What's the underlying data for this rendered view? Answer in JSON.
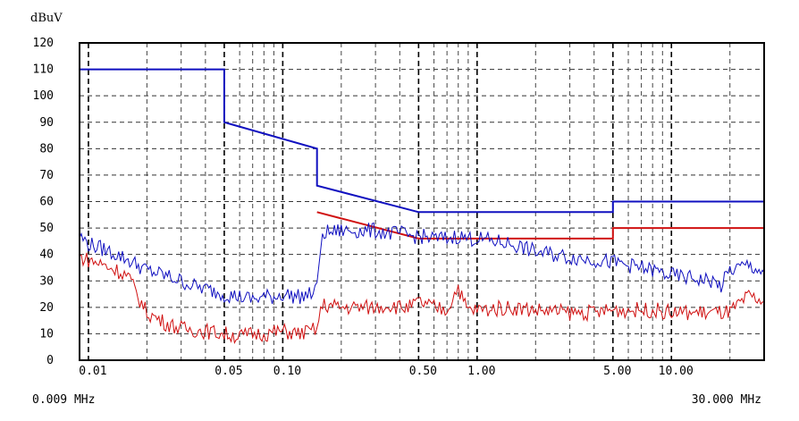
{
  "chart_data": {
    "type": "line",
    "y_unit": "dBuV",
    "x_scale": "log",
    "x_range_mhz": [
      0.009,
      30.0
    ],
    "ylim": [
      0,
      120
    ],
    "y_ticks": [
      0,
      10,
      20,
      30,
      40,
      50,
      60,
      70,
      80,
      90,
      100,
      110,
      120
    ],
    "x_ticks": [
      {
        "value": 0.01,
        "label": "0.01"
      },
      {
        "value": 0.05,
        "label": "0.05"
      },
      {
        "value": 0.1,
        "label": "0.10"
      },
      {
        "value": 0.5,
        "label": "0.50"
      },
      {
        "value": 1.0,
        "label": "1.00"
      },
      {
        "value": 5.0,
        "label": "5.00"
      },
      {
        "value": 10.0,
        "label": "10.00"
      }
    ],
    "range_start_label": "0.009 MHz",
    "range_end_label": "30.000 MHz",
    "grid": true,
    "series": [
      {
        "color": "#1010c0",
        "kind": "limit",
        "x": [
          0.009,
          0.05,
          0.05,
          0.15,
          0.15,
          0.5,
          5.0,
          5.0,
          30.0
        ],
        "y": [
          110,
          110,
          90,
          80,
          66,
          56,
          56,
          60,
          60
        ]
      },
      {
        "color": "#d01010",
        "kind": "limit",
        "x": [
          0.15,
          0.5,
          5.0,
          5.0,
          30.0
        ],
        "y": [
          56,
          46,
          46,
          50,
          50
        ]
      },
      {
        "color": "#1010c0",
        "kind": "measurement",
        "x": [
          0.009,
          0.01,
          0.012,
          0.014,
          0.016,
          0.02,
          0.025,
          0.03,
          0.035,
          0.04,
          0.05,
          0.06,
          0.07,
          0.08,
          0.09,
          0.1,
          0.12,
          0.14,
          0.15,
          0.16,
          0.2,
          0.25,
          0.3,
          0.35,
          0.4,
          0.45,
          0.5,
          0.6,
          0.7,
          0.8,
          0.9,
          1.0,
          1.5,
          2.0,
          3.0,
          4.0,
          5.0,
          6.0,
          8.0,
          10.0,
          13.0,
          16.0,
          18.0,
          20.0,
          25.0,
          30.0
        ],
        "y": [
          47,
          44,
          42,
          40,
          38,
          34,
          32,
          30,
          28,
          27,
          25,
          24,
          23,
          24,
          24,
          25,
          24,
          25,
          27,
          48,
          49,
          49,
          49,
          48,
          48,
          47,
          47,
          46,
          46,
          47,
          46,
          46,
          44,
          41,
          39,
          38,
          37,
          36,
          34,
          32,
          31,
          30,
          28,
          34,
          36,
          33
        ]
      },
      {
        "color": "#d01010",
        "kind": "measurement",
        "x": [
          0.009,
          0.01,
          0.012,
          0.014,
          0.016,
          0.018,
          0.02,
          0.025,
          0.03,
          0.04,
          0.05,
          0.06,
          0.07,
          0.08,
          0.1,
          0.12,
          0.14,
          0.15,
          0.16,
          0.2,
          0.3,
          0.35,
          0.4,
          0.45,
          0.5,
          0.6,
          0.7,
          0.8,
          0.85,
          0.9,
          1.0,
          1.5,
          2.0,
          3.0,
          4.0,
          5.0,
          6.0,
          8.0,
          10.0,
          15.0,
          20.0,
          25.0,
          30.0
        ],
        "y": [
          39,
          38,
          36,
          34,
          32,
          24,
          18,
          14,
          12,
          11,
          10,
          9,
          10,
          10,
          11,
          10,
          11,
          12,
          21,
          20,
          20,
          21,
          20,
          20,
          22,
          20,
          19,
          28,
          22,
          19,
          19,
          20,
          19,
          18,
          18,
          19,
          19,
          19,
          18,
          18,
          18,
          24,
          22
        ]
      }
    ]
  }
}
